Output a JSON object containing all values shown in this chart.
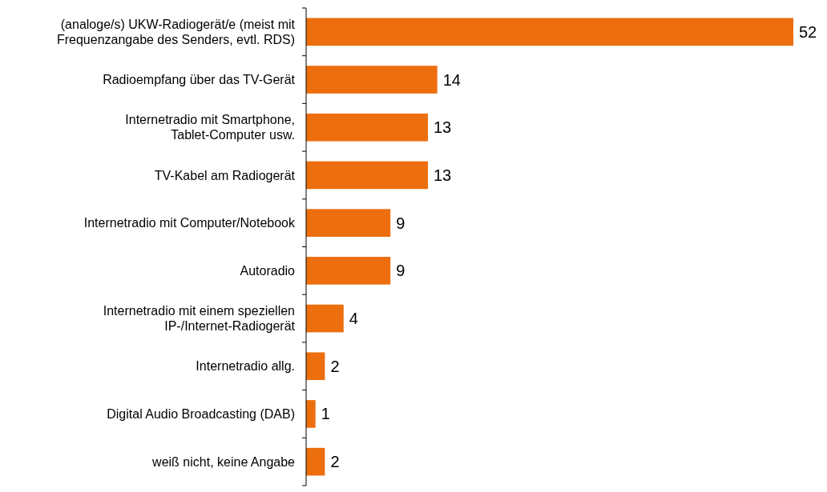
{
  "chart_data": {
    "type": "bar",
    "orientation": "horizontal",
    "categories": [
      "(analoge/s) UKW-Radiogerät/e (meist mit Frequenzangabe des Senders, evtl. RDS)",
      "Radioempfang über das TV-Gerät",
      "Internetradio mit Smartphone, Tablet-Computer usw.",
      "TV-Kabel am Radiogerät",
      "Internetradio mit Computer/Notebook",
      "Autoradio",
      "Internetradio mit einem speziellen IP-/Internet-Radiogerät",
      "Internetradio allg.",
      "Digital Audio Broadcasting (DAB)",
      "weiß nicht, keine Angabe"
    ],
    "values": [
      52,
      14,
      13,
      13,
      9,
      9,
      4,
      2,
      1,
      2
    ],
    "color": "#ec6e0d",
    "data_labels": true
  }
}
